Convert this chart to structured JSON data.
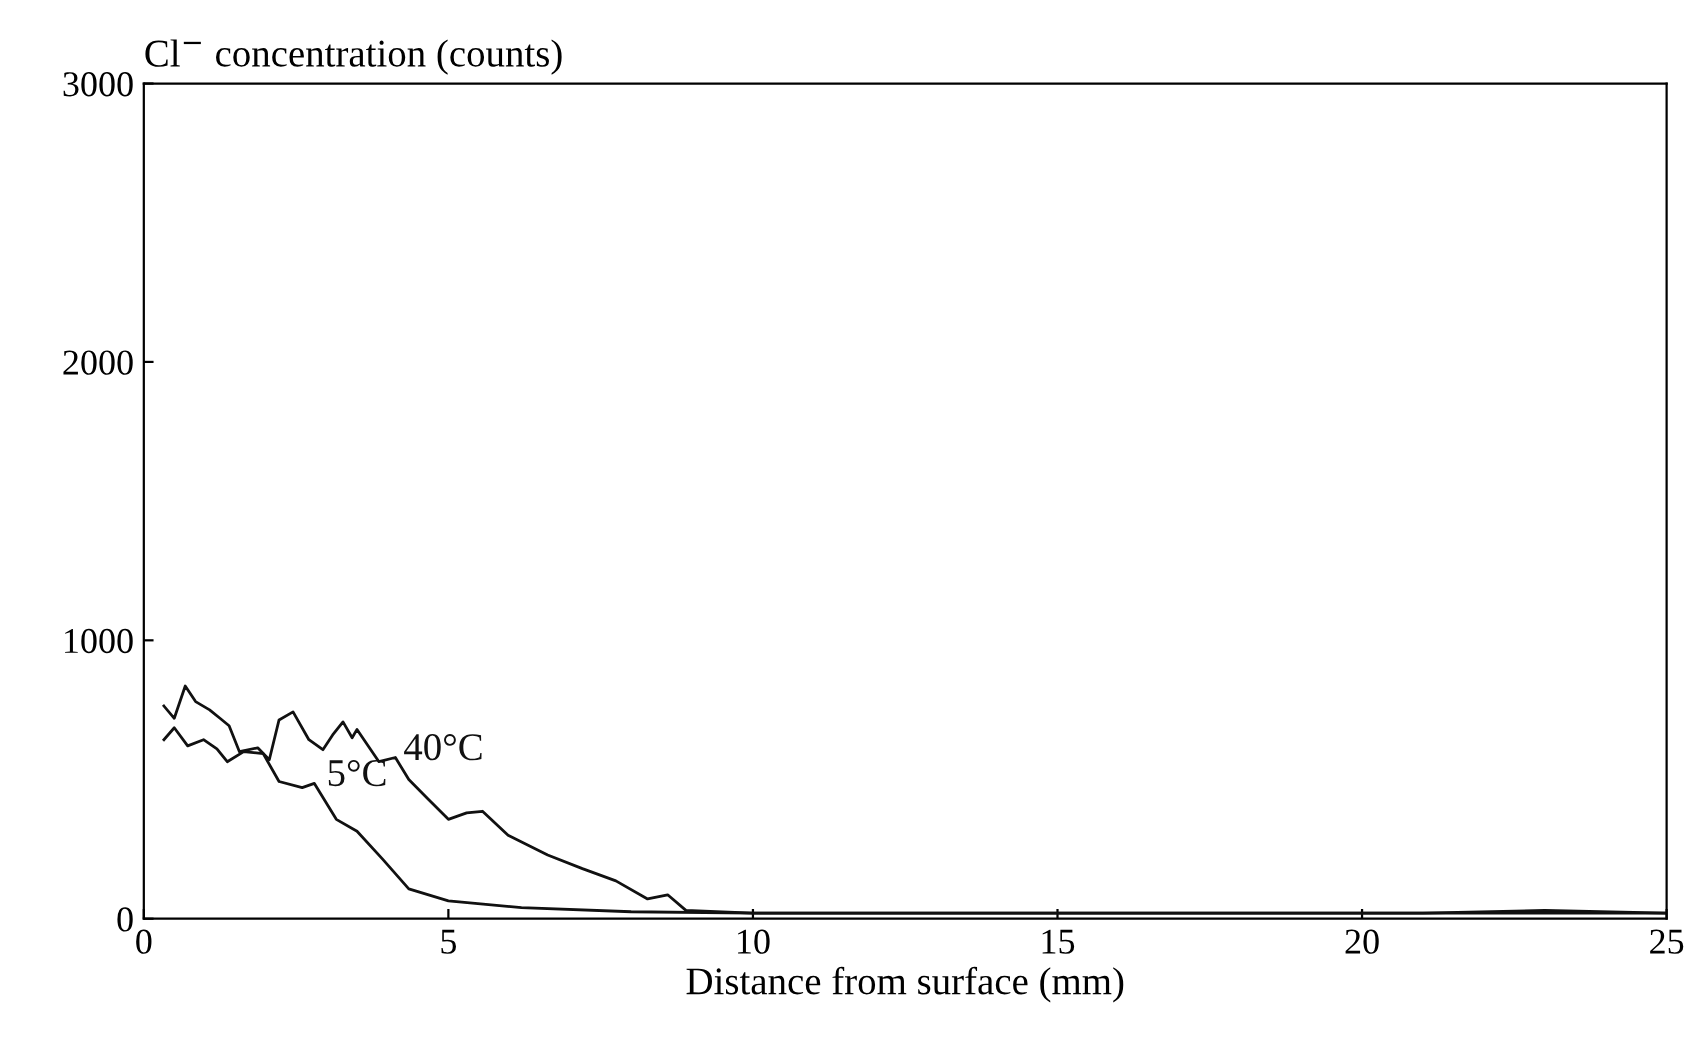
{
  "chart_data": {
    "type": "line",
    "ylabel": "Cl$^{−}$ concentration (counts)",
    "xlabel": "Distance from surface (mm)",
    "xlim": [
      0,
      25
    ],
    "xticks": [
      0,
      5,
      10,
      15,
      20,
      25
    ],
    "ylim": [
      0,
      3000
    ],
    "yticks": [
      0,
      1000,
      2000,
      3000
    ],
    "grid": false,
    "marker": "none",
    "line_style": "solid",
    "series": [
      {
        "name": "40°C",
        "color": "#111111",
        "x": [
          0.33,
          0.5,
          0.68,
          0.85,
          1.08,
          1.25,
          1.4,
          1.57,
          1.87,
          2.06,
          2.22,
          2.45,
          2.71,
          2.94,
          3.1,
          3.27,
          3.42,
          3.5,
          3.86,
          4.13,
          4.35,
          4.67,
          5.0,
          5.3,
          5.56,
          5.98,
          6.63,
          7.2,
          7.75,
          8.27,
          8.6,
          8.9,
          10,
          12,
          15,
          18,
          21,
          23,
          25
        ],
        "values": [
          764,
          720,
          836,
          780,
          750,
          720,
          693,
          600,
          614,
          571,
          714,
          743,
          643,
          607,
          660,
          707,
          650,
          680,
          564,
          579,
          500,
          429,
          357,
          380,
          386,
          300,
          229,
          180,
          136,
          71,
          86,
          30,
          20,
          20,
          20,
          20,
          20,
          30,
          20
        ]
      },
      {
        "name": "5°C",
        "color": "#111111",
        "x": [
          0.33,
          0.5,
          0.72,
          0.98,
          1.2,
          1.37,
          1.64,
          1.96,
          2.22,
          2.6,
          2.8,
          3.16,
          3.5,
          3.92,
          4.35,
          5.0,
          6.2,
          8,
          10,
          15,
          20,
          25
        ],
        "values": [
          643,
          686,
          621,
          643,
          610,
          564,
          600,
          593,
          493,
          471,
          486,
          357,
          314,
          214,
          107,
          64,
          40,
          25,
          20,
          20,
          20,
          20
        ]
      }
    ]
  }
}
